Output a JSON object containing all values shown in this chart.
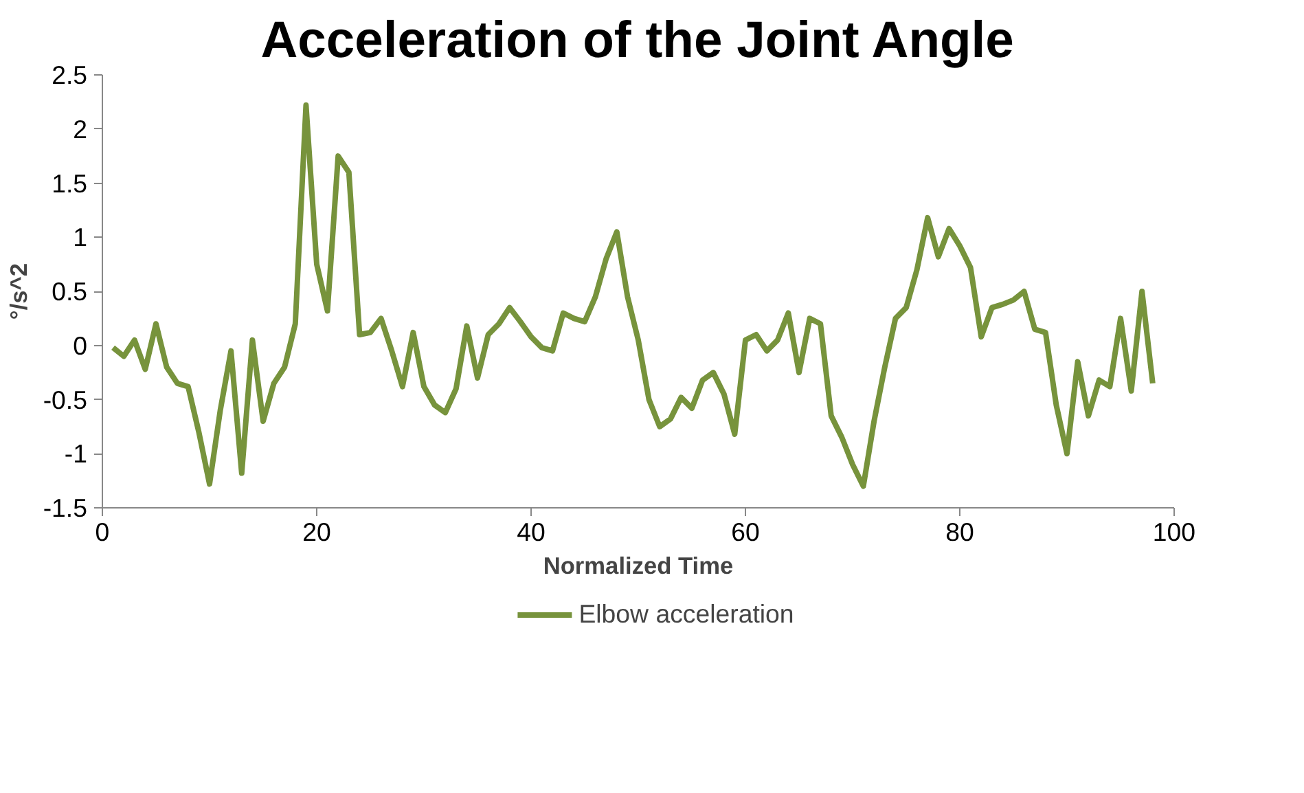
{
  "chart_data": {
    "type": "line",
    "title": "Acceleration of the Joint Angle",
    "xlabel": "Normalized Time",
    "ylabel": "°/s^2",
    "x": [
      1,
      2,
      3,
      4,
      5,
      6,
      7,
      8,
      9,
      10,
      11,
      12,
      13,
      14,
      15,
      16,
      17,
      18,
      19,
      20,
      21,
      22,
      23,
      24,
      25,
      26,
      27,
      28,
      29,
      30,
      31,
      32,
      33,
      34,
      35,
      36,
      37,
      38,
      39,
      40,
      41,
      42,
      43,
      44,
      45,
      46,
      47,
      48,
      49,
      50,
      51,
      52,
      53,
      54,
      55,
      56,
      57,
      58,
      59,
      60,
      61,
      62,
      63,
      64,
      65,
      66,
      67,
      68,
      69,
      70,
      71,
      72,
      73,
      74,
      75,
      76,
      77,
      78,
      79,
      80,
      81,
      82,
      83,
      84,
      85,
      86,
      87,
      88,
      89,
      90,
      91,
      92,
      93,
      94,
      95,
      96,
      97,
      98
    ],
    "series": [
      {
        "name": "Elbow acceleration",
        "color": "#77933c",
        "values": [
          -0.02,
          -0.1,
          0.05,
          -0.22,
          0.2,
          -0.2,
          -0.35,
          -0.38,
          -0.8,
          -1.28,
          -0.6,
          -0.05,
          -1.18,
          0.05,
          -0.7,
          -0.35,
          -0.2,
          0.2,
          2.22,
          0.75,
          0.32,
          1.75,
          1.6,
          0.1,
          0.12,
          0.25,
          -0.05,
          -0.38,
          0.12,
          -0.38,
          -0.55,
          -0.62,
          -0.4,
          0.18,
          -0.3,
          0.1,
          0.2,
          0.35,
          0.22,
          0.08,
          -0.02,
          -0.05,
          0.3,
          0.25,
          0.22,
          0.45,
          0.8,
          1.05,
          0.45,
          0.05,
          -0.5,
          -0.75,
          -0.68,
          -0.48,
          -0.58,
          -0.32,
          -0.25,
          -0.45,
          -0.82,
          0.05,
          0.1,
          -0.05,
          0.05,
          0.3,
          -0.25,
          0.25,
          0.2,
          -0.65,
          -0.85,
          -1.1,
          -1.3,
          -0.7,
          -0.2,
          0.25,
          0.35,
          0.7,
          1.18,
          0.82,
          1.08,
          0.92,
          0.72,
          0.08,
          0.35,
          0.38,
          0.42,
          0.5,
          0.15,
          0.12,
          -0.55,
          -1.0,
          -0.15,
          -0.65,
          -0.32,
          -0.38,
          0.25,
          -0.42,
          0.5,
          -0.35
        ]
      }
    ],
    "xlim": [
      0,
      100
    ],
    "xticks": [
      0,
      20,
      40,
      60,
      80,
      100
    ],
    "ylim": [
      -1.5,
      2.5
    ],
    "yticks": [
      -1.5,
      -1,
      -0.5,
      0,
      0.5,
      1,
      1.5,
      2,
      2.5
    ],
    "grid": false,
    "legend": "bottom",
    "marker": "none",
    "line_style": "solid"
  }
}
